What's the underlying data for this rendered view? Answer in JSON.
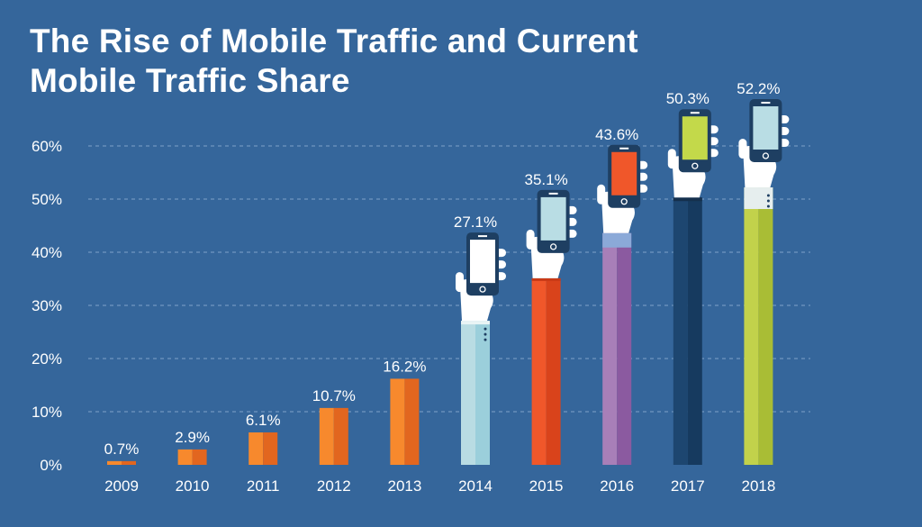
{
  "title_line1": "The Rise of Mobile Traffic and Current",
  "title_line2": "Mobile Traffic Share",
  "colors": {
    "background": "#35669b",
    "grid": "#7fa3c8",
    "phone_body": "#1e3f62",
    "hand": "#ffffff"
  },
  "chart_data": {
    "type": "bar",
    "title": "The Rise of Mobile Traffic and Current Mobile Traffic Share",
    "xlabel": "",
    "ylabel": "",
    "categories": [
      "2009",
      "2010",
      "2011",
      "2012",
      "2013",
      "2014",
      "2015",
      "2016",
      "2017",
      "2018"
    ],
    "values": [
      0.7,
      2.9,
      6.1,
      10.7,
      16.2,
      27.1,
      35.1,
      43.6,
      50.3,
      52.2
    ],
    "value_labels": [
      "0.7%",
      "2.9%",
      "6.1%",
      "10.7%",
      "16.2%",
      "27.1%",
      "35.1%",
      "43.6%",
      "50.3%",
      "52.2%"
    ],
    "ylim": [
      0,
      60
    ],
    "yticks": [
      "0%",
      "10%",
      "20%",
      "30%",
      "40%",
      "50%",
      "60%"
    ],
    "ytick_values": [
      0,
      10,
      20,
      30,
      40,
      50,
      60
    ],
    "grid": true,
    "bar_colors": [
      [
        "#f7892d",
        "#e2661f"
      ],
      [
        "#f7892d",
        "#e2661f"
      ],
      [
        "#f7892d",
        "#e2661f"
      ],
      [
        "#f7892d",
        "#e2661f"
      ],
      [
        "#f7892d",
        "#e2661f"
      ],
      [
        "#b9dce3",
        "#9bcfdb"
      ],
      [
        "#f0572a",
        "#d9431b"
      ],
      [
        "#a87fb8",
        "#8b5aa0"
      ],
      [
        "#1d4670",
        "#163a5f"
      ],
      [
        "#c2d24b",
        "#a9bd35"
      ]
    ],
    "phone_years": [
      "2014",
      "2015",
      "2016",
      "2017",
      "2018"
    ],
    "screen_colors": [
      "#ffffff",
      "#b9dde4",
      "#f0572a",
      "#c3d94a",
      "#b9dde4"
    ]
  }
}
